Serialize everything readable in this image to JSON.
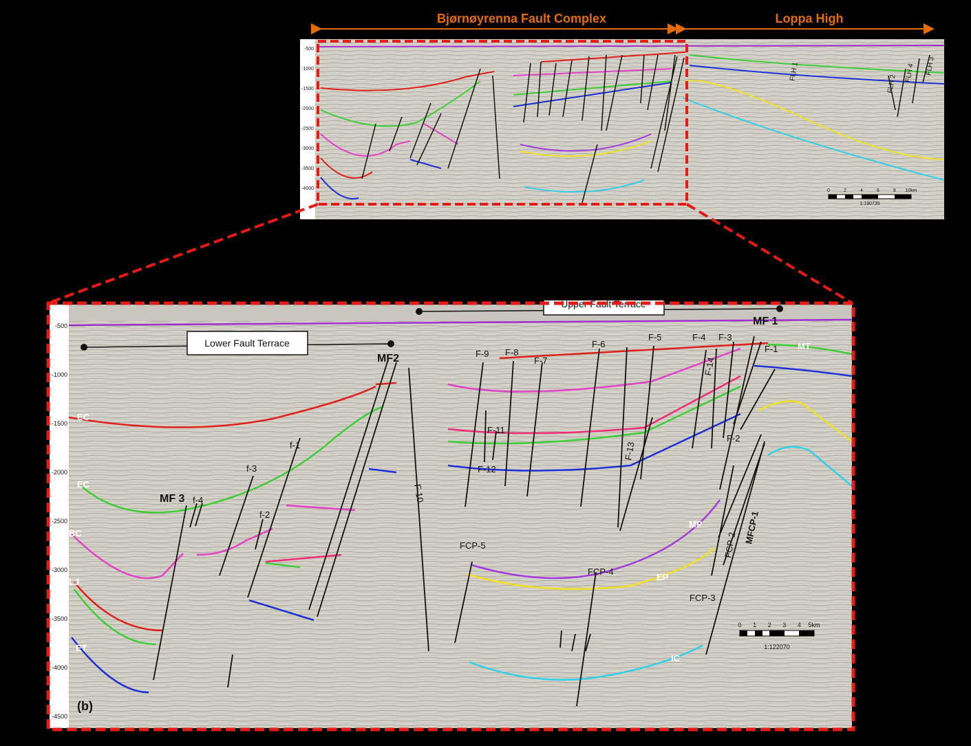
{
  "top": {
    "region_left": "Bjørnøyrenna Fault Complex",
    "region_right": "Loppa High",
    "y_ticks": [
      "-500",
      "-1000",
      "-1500",
      "-2000",
      "-2500",
      "-3000",
      "-3500",
      "-4000"
    ],
    "fault_labels": [
      "FLH 1",
      "FLH 2",
      "FLH 4",
      "FLH 3"
    ],
    "scale_ticks": [
      "0",
      "2",
      "4",
      "6",
      "8",
      "10km"
    ],
    "scale_ratio": "1:190735"
  },
  "bottom": {
    "y_ticks": [
      "-500",
      "-1000",
      "-1500",
      "-2000",
      "-2500",
      "-3000",
      "-3500",
      "-4000",
      "-4500"
    ],
    "terrace_upper": "Upper Fault Terrace",
    "terrace_lower": "Lower Fault Terrace",
    "panel_label": "(b)",
    "horizon_labels": {
      "ec1": "EC",
      "ec2": "EC",
      "bc": "BC",
      "lj": "LJ",
      "et": "ET",
      "mt": "MT",
      "mp": "MP",
      "ep": "EP",
      "ic": "IC"
    },
    "fault_labels": {
      "mf1": "MF 1",
      "mf2": "MF2",
      "mf3": "MF 3",
      "f1": "F-1",
      "f2": "F-2",
      "f3": "F-3",
      "f4": "F-4",
      "f5": "F-5",
      "f6": "F-6",
      "f7": "F-7",
      "f8": "F-8",
      "f9": "F-9",
      "f10": "F-10",
      "f11": "F-11",
      "f12": "F-12",
      "f13": "F-13",
      "f14": "F-14",
      "fs1": "f-1",
      "fs2": "f-2",
      "fs3": "f-3",
      "fs4": "f-4",
      "fcp1": "MFCP-1",
      "fcp2": "FCP-2",
      "fcp3": "FCP-3",
      "fcp4": "FCP-4",
      "fcp5": "FCP-5"
    },
    "scale_ticks": [
      "0",
      "1",
      "2",
      "3",
      "4",
      "5km"
    ],
    "scale_ratio": "1:122070"
  },
  "colors": {
    "red_frame": "#e41b17",
    "arrow": "#e36c09",
    "seismic_bg": "#d3d0c8",
    "horizon_red": "#e0201a",
    "horizon_green": "#3ccf35",
    "horizon_blue": "#1d2fd8",
    "horizon_magenta": "#e440c8",
    "horizon_purple": "#a43be0",
    "horizon_yellow": "#f0e020",
    "horizon_cyan": "#2fd0e8",
    "horizon_pink": "#f02a78",
    "seabed": "#a030d0"
  }
}
